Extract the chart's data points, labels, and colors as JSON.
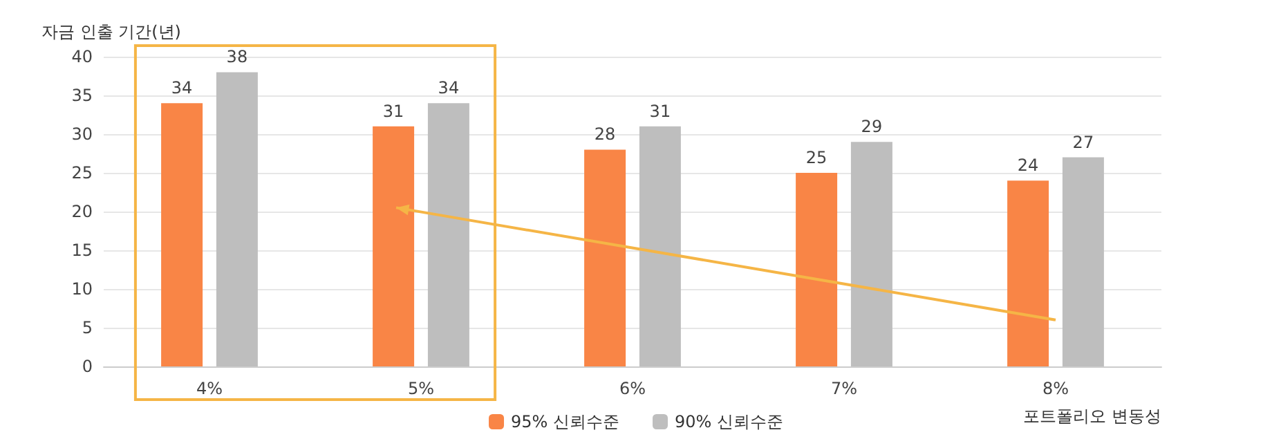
{
  "chart_data": {
    "type": "bar",
    "ylabel": "자금 인출 기간(년)",
    "xlabel": "포트폴리오 변동성",
    "categories": [
      "4%",
      "5%",
      "6%",
      "7%",
      "8%"
    ],
    "series": [
      {
        "name": "95% 신뢰수준",
        "color": "#f98546",
        "values": [
          34,
          31,
          28,
          25,
          24
        ]
      },
      {
        "name": "90% 신뢰수준",
        "color": "#bebebe",
        "values": [
          38,
          34,
          31,
          29,
          27
        ]
      }
    ],
    "ylim": [
      0,
      40
    ],
    "yticks": [
      0,
      5,
      10,
      15,
      20,
      25,
      30,
      35,
      40
    ],
    "grid": "y",
    "legend": "bottom",
    "data_labels": true
  }
}
